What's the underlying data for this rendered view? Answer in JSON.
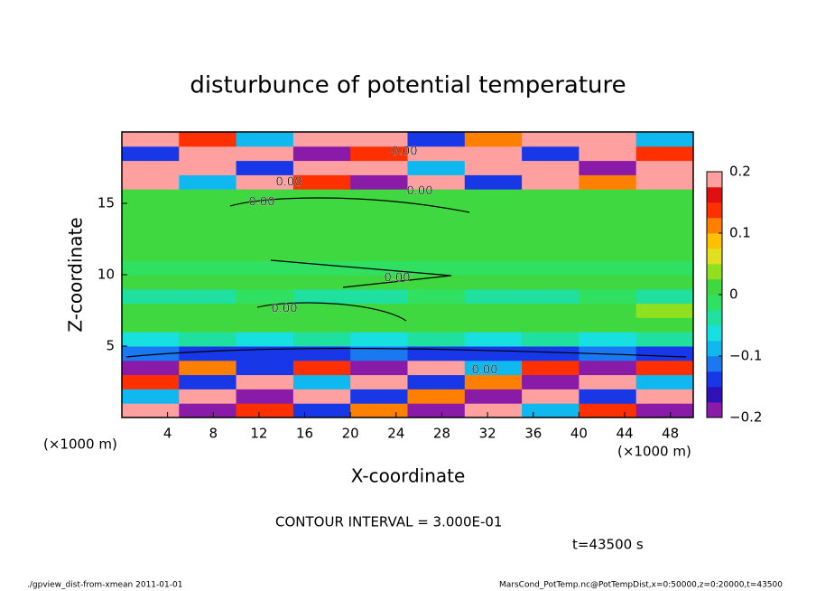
{
  "chart_data": {
    "type": "heatmap",
    "title": "disturbunce of potential temperature",
    "xlabel": "X-coordinate",
    "ylabel": "Z-coordinate",
    "x_unit": "(×1000 m)",
    "x_unit_right": "(×1000 m)",
    "contour_interval": "CONTOUR INTERVAL = 3.000E-01",
    "time_label": "t=43500 s",
    "footer_left": "./gpview_dist-from-xmean   2011-01-01",
    "footer_right": "MarsCond_PotTemp.nc@PotTempDist,x=0:50000,z=0:20000,t=43500",
    "contour_labels": [
      "0.00",
      "0.00",
      "0.00",
      "0.00",
      "0.00",
      "0.00",
      "0.00"
    ],
    "xlim": [
      0,
      50
    ],
    "ylim": [
      0,
      20
    ],
    "xticks": [
      4,
      8,
      12,
      16,
      20,
      24,
      28,
      32,
      36,
      40,
      44,
      48
    ],
    "yticks": [
      5,
      10,
      15
    ],
    "x_edges": [
      0,
      5,
      10,
      15,
      20,
      25,
      30,
      35,
      40,
      45,
      50
    ],
    "y_edges": [
      0,
      1,
      2,
      3,
      4,
      5,
      6,
      7,
      8,
      9,
      10,
      11,
      12,
      13,
      14,
      15,
      16,
      17,
      18,
      19,
      20
    ],
    "z": [
      [
        0.2,
        -0.2,
        0.15,
        -0.15,
        0.1,
        -0.2,
        0.2,
        -0.1,
        0.15,
        -0.2
      ],
      [
        -0.1,
        0.2,
        -0.2,
        0.2,
        -0.15,
        0.1,
        -0.2,
        0.2,
        -0.15,
        0.2
      ],
      [
        0.15,
        -0.15,
        0.2,
        -0.1,
        0.2,
        -0.15,
        0.1,
        -0.2,
        0.2,
        -0.1
      ],
      [
        -0.2,
        0.1,
        -0.15,
        0.15,
        -0.2,
        0.2,
        -0.1,
        0.15,
        -0.2,
        0.15
      ],
      [
        -0.12,
        -0.14,
        -0.13,
        -0.15,
        -0.12,
        -0.14,
        -0.13,
        -0.15,
        -0.12,
        -0.14
      ],
      [
        -0.06,
        -0.05,
        -0.06,
        -0.05,
        -0.07,
        -0.05,
        -0.06,
        -0.05,
        -0.06,
        -0.05
      ],
      [
        0.01,
        0.01,
        0.02,
        0.01,
        0.01,
        0.02,
        0.01,
        0.01,
        0.02,
        0.01
      ],
      [
        0.02,
        0.02,
        0.01,
        0.02,
        0.02,
        0.01,
        0.02,
        0.02,
        0.01,
        0.03
      ],
      [
        -0.03,
        -0.03,
        -0.02,
        -0.03,
        -0.03,
        -0.02,
        -0.03,
        -0.03,
        -0.02,
        -0.03
      ],
      [
        0.01,
        0.01,
        0.01,
        0.0,
        0.01,
        0.01,
        0.01,
        0.0,
        0.01,
        0.01
      ],
      [
        -0.02,
        -0.02,
        -0.01,
        -0.02,
        -0.02,
        -0.01,
        -0.02,
        -0.02,
        -0.01,
        -0.02
      ],
      [
        0.02,
        0.02,
        0.02,
        0.01,
        0.02,
        0.02,
        0.02,
        0.01,
        0.02,
        0.02
      ],
      [
        0.0,
        0.01,
        0.0,
        0.01,
        0.0,
        0.01,
        0.0,
        0.01,
        0.0,
        0.01
      ],
      [
        0.01,
        0.01,
        0.02,
        0.01,
        0.01,
        0.02,
        0.01,
        0.01,
        0.02,
        0.01
      ],
      [
        0.02,
        0.02,
        0.01,
        0.02,
        0.02,
        0.01,
        0.02,
        0.02,
        0.01,
        0.02
      ],
      [
        0.0,
        0.0,
        0.01,
        0.0,
        0.0,
        0.01,
        0.0,
        0.0,
        0.01,
        0.0
      ],
      [
        0.2,
        -0.1,
        0.2,
        0.15,
        -0.2,
        0.2,
        -0.15,
        0.2,
        0.1,
        0.2
      ],
      [
        0.2,
        0.2,
        -0.15,
        0.2,
        0.2,
        -0.1,
        0.2,
        0.2,
        -0.2,
        0.2
      ],
      [
        -0.15,
        0.2,
        0.2,
        -0.2,
        0.15,
        0.2,
        0.2,
        -0.15,
        0.2,
        0.15
      ],
      [
        0.2,
        0.15,
        -0.1,
        0.2,
        0.2,
        -0.15,
        0.1,
        0.2,
        0.2,
        -0.1
      ]
    ],
    "clim": [
      -0.2,
      0.2
    ],
    "colors": [
      "#8a1aa8",
      "#3010b8",
      "#1838e8",
      "#1a78f0",
      "#10b8f0",
      "#18e0e0",
      "#20e0a0",
      "#30e060",
      "#40d840",
      "#90e020",
      "#e0e020",
      "#ffc000",
      "#ff8000",
      "#ff3000",
      "#e01010",
      "#ffa0a0"
    ],
    "cticks": [
      {
        "value": 0.2,
        "label": "0.2"
      },
      {
        "value": 0.1,
        "label": "0.1"
      },
      0,
      {
        "value": -0.1,
        "label": "−0.1"
      },
      {
        "value": -0.2,
        "label": "−0.2"
      }
    ]
  }
}
